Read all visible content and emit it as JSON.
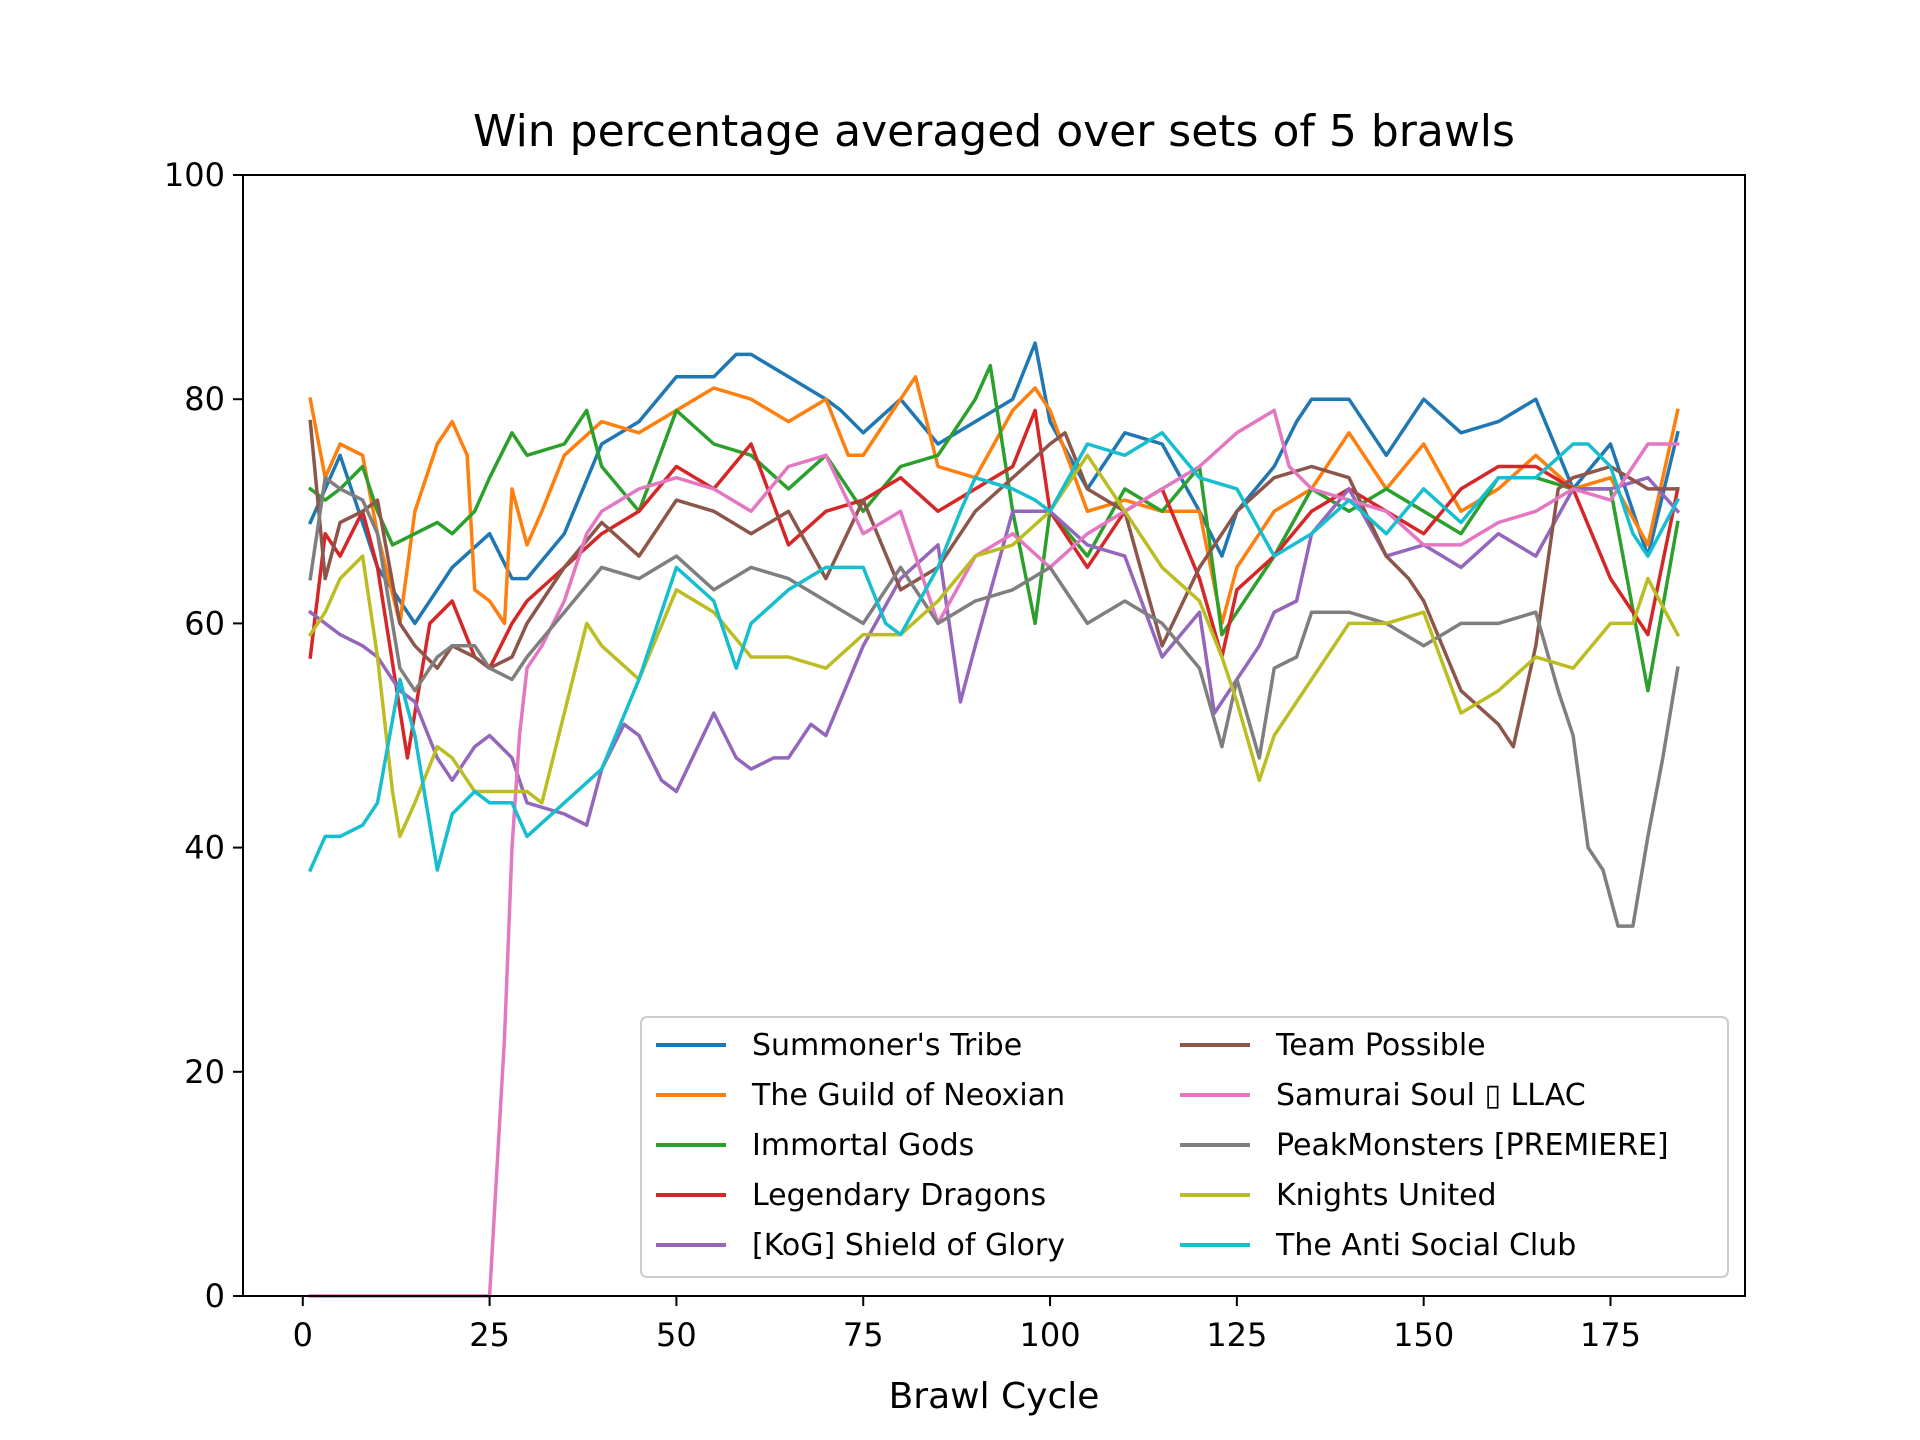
{
  "chart_data": {
    "type": "line",
    "title": "Win percentage averaged over sets of 5 brawls",
    "xlabel": "Brawl Cycle",
    "ylabel": "",
    "xlim": [
      -8,
      193
    ],
    "ylim": [
      0,
      100
    ],
    "xticks": [
      0,
      25,
      50,
      75,
      100,
      125,
      150,
      175
    ],
    "yticks": [
      0,
      20,
      40,
      60,
      80,
      100
    ],
    "grid": false,
    "legend_position": "lower-right",
    "legend_columns": 2,
    "series": [
      {
        "name": "Summoner's Tribe",
        "color": "#1f77b4",
        "x": [
          1,
          5,
          10,
          15,
          20,
          25,
          28,
          30,
          35,
          40,
          45,
          50,
          55,
          58,
          60,
          65,
          70,
          72,
          75,
          80,
          85,
          90,
          95,
          98,
          100,
          105,
          110,
          115,
          120,
          123,
          125,
          130,
          133,
          135,
          140,
          145,
          150,
          155,
          160,
          165,
          170,
          175,
          180,
          184
        ],
        "values": [
          69,
          75,
          65,
          60,
          65,
          68,
          64,
          64,
          68,
          76,
          78,
          82,
          82,
          84,
          84,
          82,
          80,
          79,
          77,
          80,
          76,
          78,
          80,
          85,
          78,
          72,
          77,
          76,
          70,
          66,
          70,
          74,
          78,
          80,
          80,
          75,
          80,
          77,
          78,
          80,
          72,
          76,
          66,
          77
        ]
      },
      {
        "name": "The Guild of Neoxian",
        "color": "#ff7f0e",
        "x": [
          1,
          3,
          5,
          8,
          10,
          13,
          15,
          18,
          20,
          22,
          23,
          25,
          27,
          28,
          30,
          32,
          35,
          40,
          45,
          50,
          55,
          60,
          65,
          70,
          73,
          75,
          78,
          82,
          85,
          90,
          95,
          98,
          100,
          105,
          110,
          115,
          120,
          123,
          125,
          130,
          135,
          140,
          145,
          150,
          155,
          160,
          165,
          170,
          175,
          180,
          184
        ],
        "values": [
          80,
          73,
          76,
          75,
          68,
          60,
          70,
          76,
          78,
          75,
          63,
          62,
          60,
          72,
          67,
          70,
          75,
          78,
          77,
          79,
          81,
          80,
          78,
          80,
          75,
          75,
          78,
          82,
          74,
          73,
          79,
          81,
          79,
          70,
          71,
          70,
          70,
          60,
          65,
          70,
          72,
          77,
          72,
          76,
          70,
          72,
          75,
          72,
          73,
          67,
          79
        ]
      },
      {
        "name": "Immortal Gods",
        "color": "#2ca02c",
        "x": [
          1,
          3,
          5,
          8,
          10,
          12,
          15,
          18,
          20,
          23,
          25,
          28,
          30,
          35,
          38,
          40,
          45,
          50,
          55,
          60,
          65,
          70,
          75,
          80,
          85,
          90,
          92,
          95,
          98,
          100,
          105,
          110,
          115,
          120,
          123,
          125,
          130,
          135,
          140,
          145,
          150,
          155,
          160,
          165,
          170,
          175,
          180,
          184
        ],
        "values": [
          72,
          71,
          72,
          74,
          70,
          67,
          68,
          69,
          68,
          70,
          73,
          77,
          75,
          76,
          79,
          74,
          70,
          79,
          76,
          75,
          72,
          75,
          70,
          74,
          75,
          80,
          83,
          70,
          60,
          70,
          66,
          72,
          70,
          74,
          59,
          61,
          66,
          72,
          70,
          72,
          70,
          68,
          73,
          73,
          72,
          72,
          54,
          69
        ]
      },
      {
        "name": "Legendary Dragons",
        "color": "#d62728",
        "x": [
          1,
          3,
          5,
          8,
          10,
          14,
          17,
          20,
          23,
          25,
          28,
          30,
          35,
          40,
          45,
          50,
          55,
          60,
          65,
          70,
          75,
          80,
          85,
          90,
          95,
          98,
          100,
          105,
          110,
          115,
          120,
          123,
          125,
          130,
          135,
          140,
          145,
          150,
          155,
          160,
          165,
          170,
          175,
          180,
          184
        ],
        "values": [
          57,
          68,
          66,
          70,
          65,
          48,
          60,
          62,
          57,
          56,
          60,
          62,
          65,
          68,
          70,
          74,
          72,
          76,
          67,
          70,
          71,
          73,
          70,
          72,
          74,
          79,
          70,
          65,
          70,
          72,
          64,
          57,
          63,
          66,
          70,
          72,
          70,
          68,
          72,
          74,
          74,
          72,
          64,
          59,
          72
        ]
      },
      {
        "name": " [KoG] Shield of Glory",
        "color": "#9467bd",
        "x": [
          1,
          3,
          5,
          8,
          10,
          13,
          15,
          18,
          20,
          23,
          25,
          28,
          30,
          35,
          38,
          40,
          43,
          45,
          48,
          50,
          55,
          58,
          60,
          63,
          65,
          68,
          70,
          75,
          80,
          85,
          88,
          90,
          95,
          100,
          105,
          110,
          115,
          120,
          122,
          125,
          128,
          130,
          133,
          135,
          140,
          145,
          150,
          155,
          160,
          165,
          170,
          175,
          180,
          184
        ],
        "values": [
          61,
          60,
          59,
          58,
          57,
          54,
          53,
          48,
          46,
          49,
          50,
          48,
          44,
          43,
          42,
          47,
          51,
          50,
          46,
          45,
          52,
          48,
          47,
          48,
          48,
          51,
          50,
          58,
          64,
          67,
          53,
          58,
          70,
          70,
          67,
          66,
          57,
          61,
          52,
          55,
          58,
          61,
          62,
          68,
          72,
          66,
          67,
          65,
          68,
          66,
          72,
          72,
          73,
          70
        ]
      },
      {
        "name": "Team Possible",
        "color": "#8c564b",
        "x": [
          1,
          3,
          5,
          8,
          10,
          13,
          15,
          18,
          20,
          23,
          25,
          28,
          30,
          35,
          40,
          45,
          50,
          55,
          60,
          65,
          70,
          75,
          80,
          85,
          90,
          95,
          100,
          102,
          105,
          110,
          115,
          120,
          125,
          130,
          135,
          140,
          145,
          148,
          150,
          155,
          160,
          162,
          165,
          168,
          170,
          175,
          180,
          184
        ],
        "values": [
          78,
          64,
          69,
          70,
          71,
          60,
          58,
          56,
          58,
          57,
          56,
          57,
          60,
          65,
          69,
          66,
          71,
          70,
          68,
          70,
          64,
          71,
          63,
          65,
          70,
          73,
          76,
          77,
          72,
          70,
          58,
          65,
          70,
          73,
          74,
          73,
          66,
          64,
          62,
          54,
          51,
          49,
          58,
          72,
          73,
          74,
          72,
          72
        ]
      },
      {
        "name": "Samurai Soul ▯ LLAC",
        "color": "#e377c2",
        "x": [
          1,
          5,
          10,
          15,
          20,
          25,
          27,
          28,
          29,
          30,
          32,
          35,
          38,
          40,
          45,
          50,
          55,
          60,
          65,
          70,
          75,
          80,
          85,
          90,
          95,
          100,
          105,
          110,
          115,
          120,
          125,
          130,
          132,
          135,
          140,
          145,
          150,
          155,
          160,
          165,
          170,
          175,
          180,
          184
        ],
        "values": [
          0,
          0,
          0,
          0,
          0,
          0,
          23,
          40,
          50,
          56,
          58,
          62,
          68,
          70,
          72,
          73,
          72,
          70,
          74,
          75,
          68,
          70,
          60,
          66,
          68,
          65,
          68,
          70,
          72,
          74,
          77,
          79,
          74,
          72,
          71,
          70,
          67,
          67,
          69,
          70,
          72,
          71,
          76,
          76
        ]
      },
      {
        "name": "PeakMonsters [PREMIERE]",
        "color": "#7f7f7f",
        "x": [
          1,
          3,
          5,
          8,
          10,
          13,
          15,
          18,
          20,
          23,
          25,
          28,
          30,
          35,
          40,
          45,
          50,
          55,
          60,
          65,
          70,
          75,
          80,
          85,
          90,
          95,
          100,
          105,
          110,
          115,
          120,
          123,
          125,
          128,
          130,
          133,
          135,
          140,
          145,
          150,
          155,
          160,
          165,
          168,
          170,
          172,
          174,
          176,
          178,
          180,
          182,
          184
        ],
        "values": [
          64,
          73,
          72,
          71,
          68,
          56,
          54,
          57,
          58,
          58,
          56,
          55,
          57,
          61,
          65,
          64,
          66,
          63,
          65,
          64,
          62,
          60,
          65,
          60,
          62,
          63,
          65,
          60,
          62,
          60,
          56,
          49,
          55,
          48,
          56,
          57,
          61,
          61,
          60,
          58,
          60,
          60,
          61,
          54,
          50,
          40,
          38,
          33,
          33,
          41,
          48,
          56
        ]
      },
      {
        "name": "Knights United",
        "color": "#bcbd22",
        "x": [
          1,
          3,
          5,
          8,
          10,
          12,
          13,
          15,
          18,
          20,
          23,
          25,
          28,
          30,
          32,
          35,
          38,
          40,
          45,
          50,
          55,
          60,
          65,
          70,
          75,
          80,
          85,
          90,
          95,
          100,
          105,
          110,
          115,
          120,
          123,
          125,
          128,
          130,
          135,
          140,
          145,
          150,
          155,
          160,
          165,
          170,
          175,
          178,
          180,
          184
        ],
        "values": [
          59,
          61,
          64,
          66,
          57,
          45,
          41,
          44,
          49,
          48,
          45,
          45,
          45,
          45,
          44,
          52,
          60,
          58,
          55,
          63,
          61,
          57,
          57,
          56,
          59,
          59,
          62,
          66,
          67,
          70,
          75,
          70,
          65,
          62,
          57,
          53,
          46,
          50,
          55,
          60,
          60,
          61,
          52,
          54,
          57,
          56,
          60,
          60,
          64,
          59
        ]
      },
      {
        "name": "The Anti Social Club",
        "color": "#17becf",
        "x": [
          1,
          3,
          5,
          8,
          10,
          13,
          15,
          18,
          20,
          23,
          25,
          28,
          30,
          35,
          40,
          45,
          50,
          55,
          58,
          60,
          65,
          70,
          75,
          78,
          80,
          85,
          88,
          90,
          95,
          98,
          100,
          105,
          110,
          115,
          120,
          125,
          130,
          135,
          140,
          145,
          150,
          155,
          160,
          165,
          170,
          172,
          175,
          178,
          180,
          184
        ],
        "values": [
          38,
          41,
          41,
          42,
          44,
          55,
          50,
          38,
          43,
          45,
          44,
          44,
          41,
          44,
          47,
          55,
          65,
          62,
          56,
          60,
          63,
          65,
          65,
          60,
          59,
          65,
          70,
          73,
          72,
          71,
          70,
          76,
          75,
          77,
          73,
          72,
          66,
          68,
          71,
          68,
          72,
          69,
          73,
          73,
          76,
          76,
          74,
          68,
          66,
          71
        ]
      }
    ]
  }
}
